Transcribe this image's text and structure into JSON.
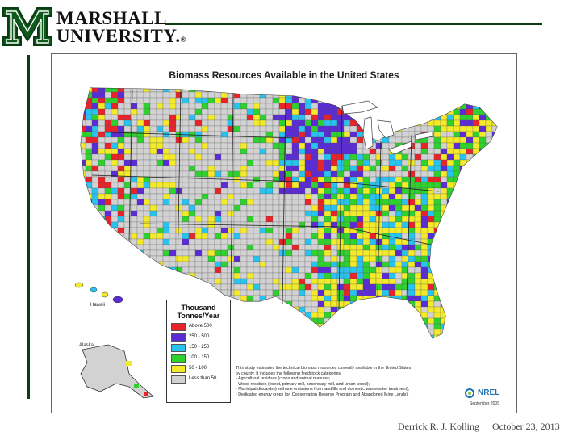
{
  "header": {
    "logo_line1": "MARSHALL",
    "logo_line2": "UNIVERSITY.",
    "logo_mark": "®",
    "brand_color": "#0e5a1c"
  },
  "map": {
    "title": "Biomass Resources Available in the United States",
    "hawaii_label": "Hawaii",
    "alaska_label": "Alaska",
    "legend": {
      "title_line1": "Thousand",
      "title_line2": "Tonnes/Year",
      "classes": [
        {
          "label": "Above 500",
          "color": "#e8232a"
        },
        {
          "label": "250 - 500",
          "color": "#5b2bd6"
        },
        {
          "label": "150 - 250",
          "color": "#29c3f0"
        },
        {
          "label": "100 - 150",
          "color": "#2fd12f"
        },
        {
          "label": "50 - 100",
          "color": "#f2ea2a"
        },
        {
          "label": "Less than 50",
          "color": "#d2d2d2"
        }
      ]
    },
    "note_lines": [
      "This study estimates the technical biomass resources currently available in the United States",
      "by county. It includes the following feedstock categories:",
      "- Agricultural residues (crops and animal manure);",
      "- Wood residues (forest, primary mill, secondary mill, and urban wood);",
      "- Municipal discards (methane emissions from landfills and domestic wastewater treatment);",
      "- Dedicated energy crops (on Conservation Reserve Program and Abandoned Mine Lands)."
    ],
    "source_logo": "NREL",
    "source_date": "September 2005"
  },
  "footer": {
    "author": "Derrick R. J. Kolling",
    "date": "October 23, 2013"
  }
}
